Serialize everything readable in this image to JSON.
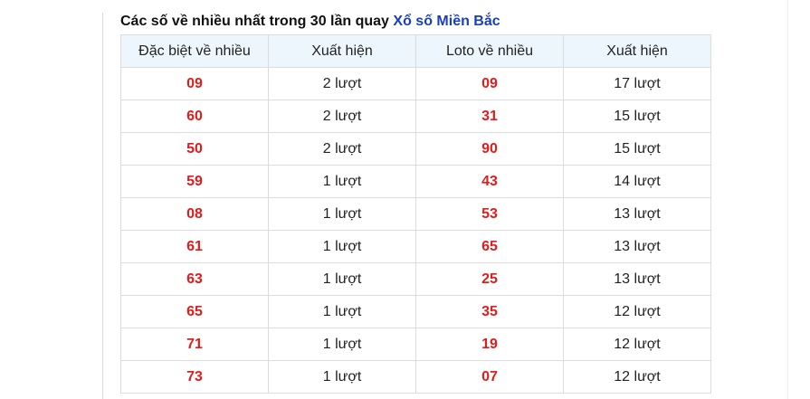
{
  "title": {
    "prefix": "Các số về nhiều nhất trong 30 lần quay",
    "brand": "Xổ số Miền Bắc",
    "brand_color": "#1a3fb8"
  },
  "table": {
    "headers": [
      "Đặc biệt về nhiều",
      "Xuất hiện",
      "Loto về nhiều",
      "Xuất hiện"
    ],
    "rows": [
      [
        "09",
        "2 lượt",
        "09",
        "17 lượt"
      ],
      [
        "60",
        "2 lượt",
        "31",
        "15 lượt"
      ],
      [
        "50",
        "2 lượt",
        "90",
        "15 lượt"
      ],
      [
        "59",
        "1 lượt",
        "43",
        "14 lượt"
      ],
      [
        "08",
        "1 lượt",
        "53",
        "13 lượt"
      ],
      [
        "61",
        "1 lượt",
        "65",
        "13 lượt"
      ],
      [
        "63",
        "1 lượt",
        "25",
        "13 lượt"
      ],
      [
        "65",
        "1 lượt",
        "35",
        "12 lượt"
      ],
      [
        "71",
        "1 lượt",
        "19",
        "12 lượt"
      ],
      [
        "73",
        "1 lượt",
        "07",
        "12 lượt"
      ]
    ],
    "number_color": "#e01c1c"
  }
}
